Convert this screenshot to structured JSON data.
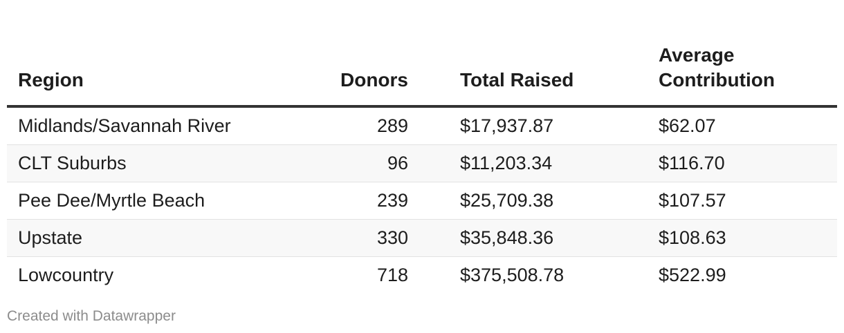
{
  "chart_data": {
    "type": "table",
    "columns": [
      "Region",
      "Donors",
      "Total Raised",
      "Average Contribution"
    ],
    "rows": [
      [
        "Midlands/Savannah River",
        "289",
        "$17,937.87",
        "$62.07"
      ],
      [
        "CLT Suburbs",
        "96",
        "$11,203.34",
        "$116.70"
      ],
      [
        "Pee Dee/Myrtle Beach",
        "239",
        "$25,709.38",
        "$107.57"
      ],
      [
        "Upstate",
        "330",
        "$35,848.36",
        "$108.63"
      ],
      [
        "Lowcountry",
        "718",
        "$375,508.78",
        "$522.99"
      ]
    ],
    "header_line_1": "Average",
    "header_line_2": "Contribution"
  },
  "footer": {
    "credit": "Created with Datawrapper"
  }
}
